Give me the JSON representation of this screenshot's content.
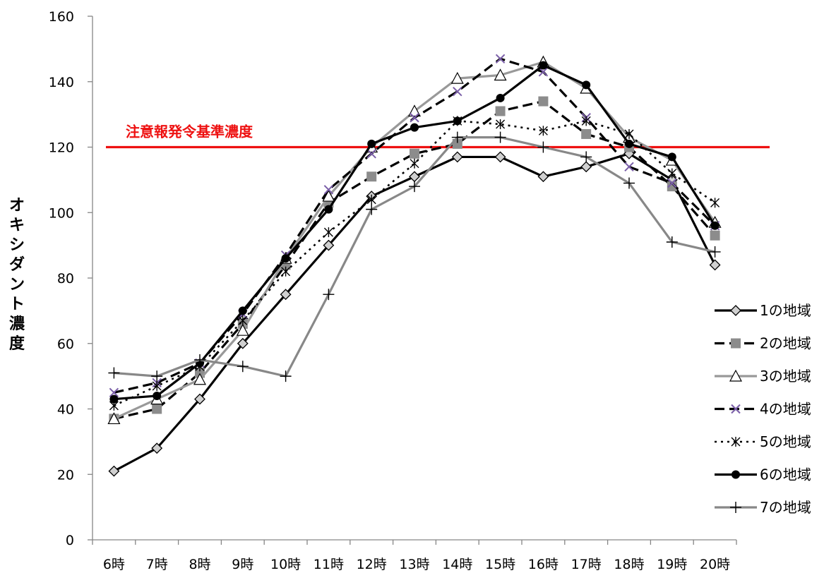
{
  "chart_data": {
    "type": "line",
    "title": "",
    "xlabel": "",
    "ylabel": "オキシダント濃度",
    "categories": [
      "6時",
      "7時",
      "8時",
      "9時",
      "10時",
      "11時",
      "12時",
      "13時",
      "14時",
      "15時",
      "16時",
      "17時",
      "18時",
      "19時",
      "20時"
    ],
    "ylim": [
      0,
      160
    ],
    "yticks": [
      0,
      20,
      40,
      60,
      80,
      100,
      120,
      140,
      160
    ],
    "grid": false,
    "legend_position": "right",
    "reference_line": {
      "value": 120,
      "label": "注意報発令基準濃度",
      "color": "#ee1111"
    },
    "series": [
      {
        "name": "1の地域",
        "color": "#000000",
        "dash": "solid",
        "marker": "diamond",
        "values": [
          21,
          28,
          43,
          60,
          75,
          90,
          105,
          111,
          117,
          117,
          111,
          114,
          118,
          110,
          84
        ]
      },
      {
        "name": "2の地域",
        "color": "#000000",
        "dash": "dashed",
        "marker": "square",
        "values": [
          37,
          40,
          51,
          66,
          84,
          103,
          111,
          118,
          121,
          131,
          134,
          124,
          120,
          108,
          93
        ]
      },
      {
        "name": "3の地域",
        "color": "#999999",
        "dash": "solid",
        "marker": "triangle",
        "values": [
          37,
          43,
          49,
          64,
          86,
          105,
          120,
          131,
          141,
          142,
          146,
          138,
          123,
          116,
          97
        ]
      },
      {
        "name": "4の地域",
        "color": "#000000",
        "dash": "dashed",
        "marker": "x",
        "values": [
          45,
          48,
          54,
          69,
          87,
          107,
          118,
          129,
          137,
          147,
          143,
          129,
          114,
          109,
          96
        ]
      },
      {
        "name": "5の地域",
        "color": "#000000",
        "dash": "dotted",
        "marker": "asterisk",
        "values": [
          41,
          47,
          53,
          67,
          82,
          94,
          104,
          115,
          128,
          127,
          125,
          128,
          124,
          112,
          103
        ]
      },
      {
        "name": "6の地域",
        "color": "#000000",
        "dash": "solid",
        "marker": "circle",
        "values": [
          43,
          44,
          54,
          70,
          86,
          101,
          121,
          126,
          128,
          135,
          145,
          139,
          121,
          117,
          96
        ]
      },
      {
        "name": "7の地域",
        "color": "#888888",
        "dash": "solid",
        "marker": "plus",
        "values": [
          51,
          50,
          55,
          53,
          50,
          75,
          101,
          108,
          123,
          123,
          120,
          117,
          109,
          91,
          88
        ]
      }
    ]
  }
}
